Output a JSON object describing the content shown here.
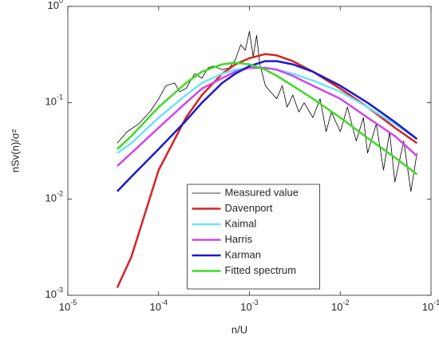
{
  "chart_data": {
    "type": "line",
    "xlabel": "n/U",
    "ylabel": "nSv(n)/σ²",
    "xscale": "log",
    "yscale": "log",
    "xlim": [
      1e-05,
      0.1
    ],
    "ylim": [
      0.001,
      1
    ],
    "xticks": [
      {
        "value": 1e-05,
        "label": "10",
        "exponent": "-5"
      },
      {
        "value": 0.0001,
        "label": "10",
        "exponent": "-4"
      },
      {
        "value": 0.001,
        "label": "10",
        "exponent": "-3"
      },
      {
        "value": 0.01,
        "label": "10",
        "exponent": "-2"
      },
      {
        "value": 0.1,
        "label": "10",
        "exponent": "-1"
      }
    ],
    "yticks": [
      {
        "value": 0.001,
        "label": "10",
        "exponent": "-3"
      },
      {
        "value": 0.01,
        "label": "10",
        "exponent": "-2"
      },
      {
        "value": 0.1,
        "label": "10",
        "exponent": "-1"
      },
      {
        "value": 1,
        "label": "10",
        "exponent": "0"
      }
    ],
    "legend": "bottom",
    "x": [
      3.5e-05,
      5e-05,
      0.0001,
      0.0002,
      0.0003,
      0.0005,
      0.0007,
      0.001,
      0.0015,
      0.002,
      0.003,
      0.005,
      0.01,
      0.02,
      0.04,
      0.07
    ],
    "series": [
      {
        "name": "Measured value",
        "color": "#000000",
        "width": 0.8,
        "x": [
          3.5e-05,
          4.5e-05,
          6e-05,
          8e-05,
          0.0001,
          0.00012,
          0.00015,
          0.00017,
          0.0002,
          0.00025,
          0.0003,
          0.00035,
          0.0004,
          0.0005,
          0.0006,
          0.0007,
          0.0008,
          0.0009,
          0.001,
          0.0011,
          0.0012,
          0.0013,
          0.0015,
          0.0017,
          0.002,
          0.0023,
          0.0026,
          0.003,
          0.0035,
          0.004,
          0.005,
          0.006,
          0.007,
          0.008,
          0.01,
          0.012,
          0.015,
          0.018,
          0.02,
          0.025,
          0.03,
          0.035,
          0.04,
          0.05,
          0.06,
          0.07
        ],
        "values": [
          0.038,
          0.05,
          0.06,
          0.08,
          0.11,
          0.15,
          0.16,
          0.13,
          0.14,
          0.2,
          0.18,
          0.23,
          0.24,
          0.22,
          0.23,
          0.28,
          0.4,
          0.35,
          0.55,
          0.3,
          0.5,
          0.25,
          0.15,
          0.13,
          0.11,
          0.15,
          0.09,
          0.12,
          0.08,
          0.1,
          0.07,
          0.11,
          0.05,
          0.08,
          0.05,
          0.09,
          0.04,
          0.07,
          0.03,
          0.06,
          0.02,
          0.05,
          0.015,
          0.04,
          0.012,
          0.03
        ]
      },
      {
        "name": "Davenport",
        "color": "#d42424",
        "width": 2.5,
        "values": [
          0.0012,
          0.0025,
          0.02,
          0.07,
          0.12,
          0.2,
          0.25,
          0.29,
          0.32,
          0.31,
          0.27,
          0.21,
          0.14,
          0.09,
          0.055,
          0.038
        ]
      },
      {
        "name": "Kaimal",
        "color": "#6fe3f5",
        "width": 2.5,
        "values": [
          0.03,
          0.038,
          0.07,
          0.12,
          0.16,
          0.2,
          0.22,
          0.23,
          0.23,
          0.22,
          0.2,
          0.17,
          0.13,
          0.09,
          0.06,
          0.042
        ]
      },
      {
        "name": "Harris",
        "color": "#d244e8",
        "width": 2.5,
        "values": [
          0.022,
          0.03,
          0.055,
          0.1,
          0.14,
          0.18,
          0.21,
          0.23,
          0.23,
          0.22,
          0.19,
          0.15,
          0.11,
          0.07,
          0.045,
          0.028
        ]
      },
      {
        "name": "Karman",
        "color": "#1a1acc",
        "width": 2.5,
        "values": [
          0.012,
          0.017,
          0.033,
          0.065,
          0.1,
          0.16,
          0.2,
          0.24,
          0.27,
          0.27,
          0.25,
          0.21,
          0.15,
          0.1,
          0.063,
          0.042
        ]
      },
      {
        "name": "Fitted spectrum",
        "color": "#3ddc24",
        "width": 2.5,
        "values": [
          0.033,
          0.045,
          0.09,
          0.16,
          0.21,
          0.25,
          0.26,
          0.25,
          0.22,
          0.19,
          0.15,
          0.11,
          0.07,
          0.043,
          0.027,
          0.018
        ]
      }
    ]
  }
}
